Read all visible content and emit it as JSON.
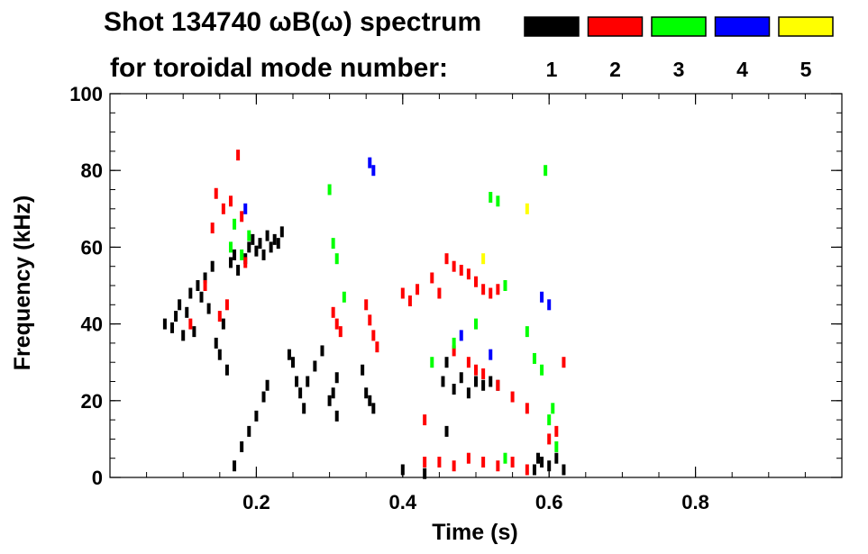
{
  "chart_data": {
    "type": "scatter",
    "title_line1": "Shot 134740 ωB(ω) spectrum",
    "title_line2": "for toroidal mode number:",
    "xlabel": "Time (s)",
    "ylabel": "Frequency (kHz)",
    "xlim": [
      0.0,
      1.0
    ],
    "ylim": [
      0,
      100
    ],
    "x_ticks": [
      0.2,
      0.4,
      0.6,
      0.8
    ],
    "y_ticks": [
      0,
      20,
      40,
      60,
      80,
      100
    ],
    "legend": [
      {
        "label": "1",
        "color": "#000000"
      },
      {
        "label": "2",
        "color": "#ff0000"
      },
      {
        "label": "3",
        "color": "#00ff00"
      },
      {
        "label": "4",
        "color": "#0000ff"
      },
      {
        "label": "5",
        "color": "#ffff00"
      }
    ],
    "series": [
      {
        "mode": 1,
        "color": "#000000",
        "points": [
          [
            0.075,
            40
          ],
          [
            0.085,
            39
          ],
          [
            0.09,
            42
          ],
          [
            0.095,
            45
          ],
          [
            0.1,
            37
          ],
          [
            0.105,
            43
          ],
          [
            0.11,
            48
          ],
          [
            0.115,
            38
          ],
          [
            0.12,
            50
          ],
          [
            0.125,
            47
          ],
          [
            0.13,
            52
          ],
          [
            0.135,
            44
          ],
          [
            0.14,
            55
          ],
          [
            0.145,
            35
          ],
          [
            0.15,
            32
          ],
          [
            0.155,
            40
          ],
          [
            0.16,
            28
          ],
          [
            0.165,
            56
          ],
          [
            0.17,
            58
          ],
          [
            0.175,
            54
          ],
          [
            0.185,
            57
          ],
          [
            0.19,
            60
          ],
          [
            0.195,
            62
          ],
          [
            0.2,
            59
          ],
          [
            0.205,
            61
          ],
          [
            0.21,
            58
          ],
          [
            0.215,
            63
          ],
          [
            0.22,
            60
          ],
          [
            0.225,
            62
          ],
          [
            0.23,
            61
          ],
          [
            0.235,
            64
          ],
          [
            0.17,
            3
          ],
          [
            0.18,
            8
          ],
          [
            0.19,
            12
          ],
          [
            0.2,
            16
          ],
          [
            0.21,
            21
          ],
          [
            0.215,
            24
          ],
          [
            0.245,
            32
          ],
          [
            0.25,
            30
          ],
          [
            0.255,
            25
          ],
          [
            0.26,
            22
          ],
          [
            0.265,
            18
          ],
          [
            0.27,
            25
          ],
          [
            0.28,
            29
          ],
          [
            0.29,
            33
          ],
          [
            0.3,
            20
          ],
          [
            0.305,
            22
          ],
          [
            0.31,
            16
          ],
          [
            0.31,
            26
          ],
          [
            0.345,
            28
          ],
          [
            0.35,
            22
          ],
          [
            0.355,
            20
          ],
          [
            0.36,
            18
          ],
          [
            0.4,
            2
          ],
          [
            0.43,
            1
          ],
          [
            0.46,
            12
          ],
          [
            0.455,
            25
          ],
          [
            0.46,
            30
          ],
          [
            0.47,
            23
          ],
          [
            0.48,
            26
          ],
          [
            0.49,
            22
          ],
          [
            0.5,
            25
          ],
          [
            0.51,
            24
          ],
          [
            0.52,
            25
          ],
          [
            0.53,
            24
          ],
          [
            0.58,
            2
          ],
          [
            0.585,
            5
          ],
          [
            0.59,
            4
          ],
          [
            0.6,
            3
          ],
          [
            0.61,
            5
          ],
          [
            0.62,
            2
          ]
        ]
      },
      {
        "mode": 2,
        "color": "#ff0000",
        "points": [
          [
            0.11,
            40
          ],
          [
            0.13,
            50
          ],
          [
            0.14,
            65
          ],
          [
            0.145,
            74
          ],
          [
            0.15,
            42
          ],
          [
            0.155,
            70
          ],
          [
            0.16,
            45
          ],
          [
            0.165,
            72
          ],
          [
            0.175,
            84
          ],
          [
            0.18,
            68
          ],
          [
            0.185,
            56
          ],
          [
            0.305,
            43
          ],
          [
            0.31,
            40
          ],
          [
            0.315,
            38
          ],
          [
            0.35,
            45
          ],
          [
            0.355,
            41
          ],
          [
            0.36,
            37
          ],
          [
            0.365,
            34
          ],
          [
            0.4,
            48
          ],
          [
            0.41,
            46
          ],
          [
            0.42,
            49
          ],
          [
            0.43,
            15
          ],
          [
            0.44,
            52
          ],
          [
            0.45,
            48
          ],
          [
            0.46,
            57
          ],
          [
            0.47,
            55
          ],
          [
            0.48,
            54
          ],
          [
            0.49,
            53
          ],
          [
            0.5,
            51
          ],
          [
            0.51,
            49
          ],
          [
            0.52,
            48
          ],
          [
            0.53,
            49
          ],
          [
            0.47,
            33
          ],
          [
            0.49,
            30
          ],
          [
            0.5,
            28
          ],
          [
            0.51,
            27
          ],
          [
            0.53,
            24
          ],
          [
            0.55,
            21
          ],
          [
            0.57,
            18
          ],
          [
            0.43,
            4
          ],
          [
            0.45,
            4
          ],
          [
            0.47,
            3
          ],
          [
            0.49,
            5
          ],
          [
            0.51,
            4
          ],
          [
            0.53,
            3
          ],
          [
            0.55,
            4
          ],
          [
            0.57,
            2
          ],
          [
            0.6,
            10
          ],
          [
            0.61,
            12
          ],
          [
            0.62,
            30
          ]
        ]
      },
      {
        "mode": 3,
        "color": "#00ff00",
        "points": [
          [
            0.165,
            60
          ],
          [
            0.17,
            66
          ],
          [
            0.18,
            58
          ],
          [
            0.19,
            63
          ],
          [
            0.3,
            75
          ],
          [
            0.305,
            61
          ],
          [
            0.31,
            57
          ],
          [
            0.32,
            47
          ],
          [
            0.44,
            30
          ],
          [
            0.47,
            35
          ],
          [
            0.5,
            40
          ],
          [
            0.52,
            73
          ],
          [
            0.53,
            72
          ],
          [
            0.54,
            50
          ],
          [
            0.57,
            38
          ],
          [
            0.58,
            31
          ],
          [
            0.59,
            28
          ],
          [
            0.595,
            80
          ],
          [
            0.6,
            15
          ],
          [
            0.605,
            18
          ],
          [
            0.61,
            8
          ],
          [
            0.54,
            5
          ]
        ]
      },
      {
        "mode": 4,
        "color": "#0000ff",
        "points": [
          [
            0.185,
            70
          ],
          [
            0.355,
            82
          ],
          [
            0.36,
            80
          ],
          [
            0.48,
            37
          ],
          [
            0.52,
            32
          ],
          [
            0.59,
            47
          ],
          [
            0.6,
            45
          ]
        ]
      },
      {
        "mode": 5,
        "color": "#ffff00",
        "points": [
          [
            0.57,
            70
          ],
          [
            0.51,
            57
          ]
        ]
      }
    ]
  }
}
